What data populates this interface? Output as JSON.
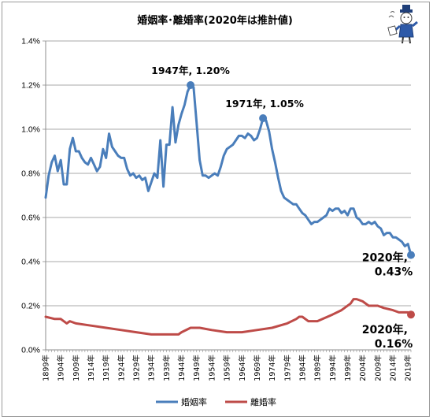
{
  "chart_data": {
    "type": "line",
    "title": "婚姻率･離婚率(2020年は推計値)",
    "ylim": [
      0,
      1.4
    ],
    "y_ticks": [
      "0.0%",
      "0.2%",
      "0.4%",
      "0.6%",
      "0.8%",
      "1.0%",
      "1.2%",
      "1.4%"
    ],
    "x_tick_labels": [
      "1899年",
      "1904年",
      "1909年",
      "1914年",
      "1919年",
      "1924年",
      "1929年",
      "1934年",
      "1939年",
      "1944年",
      "1949年",
      "1954年",
      "1959年",
      "1964年",
      "1969年",
      "1974年",
      "1979年",
      "1984年",
      "1989年",
      "1994年",
      "1999年",
      "2004年",
      "2009年",
      "2014年",
      "2019年"
    ],
    "xlim": [
      1899,
      2020
    ],
    "grid": "horizontal",
    "legend": "bottom",
    "series": [
      {
        "name": "婚姻率",
        "color": "#4a7ebb",
        "points": [
          [
            1899,
            0.69
          ],
          [
            1900,
            0.79
          ],
          [
            1901,
            0.85
          ],
          [
            1902,
            0.88
          ],
          [
            1903,
            0.81
          ],
          [
            1904,
            0.86
          ],
          [
            1905,
            0.75
          ],
          [
            1906,
            0.75
          ],
          [
            1907,
            0.91
          ],
          [
            1908,
            0.96
          ],
          [
            1909,
            0.9
          ],
          [
            1910,
            0.9
          ],
          [
            1911,
            0.87
          ],
          [
            1912,
            0.85
          ],
          [
            1913,
            0.84
          ],
          [
            1914,
            0.87
          ],
          [
            1915,
            0.84
          ],
          [
            1916,
            0.81
          ],
          [
            1917,
            0.83
          ],
          [
            1918,
            0.91
          ],
          [
            1919,
            0.87
          ],
          [
            1920,
            0.98
          ],
          [
            1921,
            0.92
          ],
          [
            1922,
            0.9
          ],
          [
            1923,
            0.88
          ],
          [
            1924,
            0.87
          ],
          [
            1925,
            0.87
          ],
          [
            1926,
            0.82
          ],
          [
            1927,
            0.79
          ],
          [
            1928,
            0.8
          ],
          [
            1929,
            0.78
          ],
          [
            1930,
            0.79
          ],
          [
            1931,
            0.77
          ],
          [
            1932,
            0.78
          ],
          [
            1933,
            0.72
          ],
          [
            1934,
            0.76
          ],
          [
            1935,
            0.8
          ],
          [
            1936,
            0.78
          ],
          [
            1937,
            0.95
          ],
          [
            1938,
            0.74
          ],
          [
            1939,
            0.93
          ],
          [
            1940,
            0.93
          ],
          [
            1941,
            1.1
          ],
          [
            1942,
            0.94
          ],
          [
            1943,
            1.02
          ],
          [
            1944,
            1.07
          ],
          [
            1945,
            1.11
          ],
          [
            1946,
            1.17
          ],
          [
            1947,
            1.2
          ],
          [
            1948,
            1.19
          ],
          [
            1949,
            1.03
          ],
          [
            1950,
            0.86
          ],
          [
            1951,
            0.79
          ],
          [
            1952,
            0.79
          ],
          [
            1953,
            0.78
          ],
          [
            1954,
            0.79
          ],
          [
            1955,
            0.8
          ],
          [
            1956,
            0.79
          ],
          [
            1957,
            0.83
          ],
          [
            1958,
            0.88
          ],
          [
            1959,
            0.91
          ],
          [
            1960,
            0.92
          ],
          [
            1961,
            0.93
          ],
          [
            1962,
            0.95
          ],
          [
            1963,
            0.97
          ],
          [
            1964,
            0.97
          ],
          [
            1965,
            0.96
          ],
          [
            1966,
            0.98
          ],
          [
            1967,
            0.97
          ],
          [
            1968,
            0.95
          ],
          [
            1969,
            0.96
          ],
          [
            1970,
            1.0
          ],
          [
            1971,
            1.05
          ],
          [
            1972,
            1.04
          ],
          [
            1973,
            0.99
          ],
          [
            1974,
            0.91
          ],
          [
            1975,
            0.85
          ],
          [
            1976,
            0.78
          ],
          [
            1977,
            0.72
          ],
          [
            1978,
            0.69
          ],
          [
            1979,
            0.68
          ],
          [
            1980,
            0.67
          ],
          [
            1981,
            0.66
          ],
          [
            1982,
            0.66
          ],
          [
            1983,
            0.64
          ],
          [
            1984,
            0.62
          ],
          [
            1985,
            0.61
          ],
          [
            1986,
            0.59
          ],
          [
            1987,
            0.57
          ],
          [
            1988,
            0.58
          ],
          [
            1989,
            0.58
          ],
          [
            1990,
            0.59
          ],
          [
            1991,
            0.6
          ],
          [
            1992,
            0.61
          ],
          [
            1993,
            0.64
          ],
          [
            1994,
            0.63
          ],
          [
            1995,
            0.64
          ],
          [
            1996,
            0.64
          ],
          [
            1997,
            0.62
          ],
          [
            1998,
            0.63
          ],
          [
            1999,
            0.61
          ],
          [
            2000,
            0.64
          ],
          [
            2001,
            0.64
          ],
          [
            2002,
            0.6
          ],
          [
            2003,
            0.59
          ],
          [
            2004,
            0.57
          ],
          [
            2005,
            0.57
          ],
          [
            2006,
            0.58
          ],
          [
            2007,
            0.57
          ],
          [
            2008,
            0.58
          ],
          [
            2009,
            0.56
          ],
          [
            2010,
            0.55
          ],
          [
            2011,
            0.52
          ],
          [
            2012,
            0.53
          ],
          [
            2013,
            0.53
          ],
          [
            2014,
            0.51
          ],
          [
            2015,
            0.51
          ],
          [
            2016,
            0.5
          ],
          [
            2017,
            0.49
          ],
          [
            2018,
            0.47
          ],
          [
            2019,
            0.48
          ],
          [
            2020,
            0.43
          ]
        ]
      },
      {
        "name": "離婚率",
        "color": "#be4b48",
        "points": [
          [
            1899,
            0.15
          ],
          [
            1902,
            0.14
          ],
          [
            1904,
            0.14
          ],
          [
            1906,
            0.12
          ],
          [
            1907,
            0.13
          ],
          [
            1909,
            0.12
          ],
          [
            1914,
            0.11
          ],
          [
            1919,
            0.1
          ],
          [
            1924,
            0.09
          ],
          [
            1929,
            0.08
          ],
          [
            1934,
            0.07
          ],
          [
            1939,
            0.07
          ],
          [
            1941,
            0.07
          ],
          [
            1942,
            0.07
          ],
          [
            1943,
            0.07
          ],
          [
            1944,
            0.08
          ],
          [
            1947,
            0.1
          ],
          [
            1950,
            0.1
          ],
          [
            1954,
            0.09
          ],
          [
            1959,
            0.08
          ],
          [
            1964,
            0.08
          ],
          [
            1969,
            0.09
          ],
          [
            1974,
            0.1
          ],
          [
            1979,
            0.12
          ],
          [
            1982,
            0.14
          ],
          [
            1983,
            0.15
          ],
          [
            1984,
            0.15
          ],
          [
            1986,
            0.13
          ],
          [
            1989,
            0.13
          ],
          [
            1994,
            0.16
          ],
          [
            1997,
            0.18
          ],
          [
            2000,
            0.21
          ],
          [
            2001,
            0.23
          ],
          [
            2002,
            0.23
          ],
          [
            2004,
            0.22
          ],
          [
            2006,
            0.2
          ],
          [
            2009,
            0.2
          ],
          [
            2011,
            0.19
          ],
          [
            2014,
            0.18
          ],
          [
            2016,
            0.17
          ],
          [
            2019,
            0.17
          ],
          [
            2020,
            0.16
          ]
        ]
      }
    ],
    "annotations": [
      {
        "text": "1947年, 1.20%",
        "x": 1947,
        "y": 1.2
      },
      {
        "text": "1971年, 1.05%",
        "x": 1971,
        "y": 1.05
      },
      {
        "text": "2020年,",
        "text2": "0.43%",
        "x": 2020,
        "y": 0.43
      },
      {
        "text": "2020年,",
        "text2": "0.16%",
        "x": 2020,
        "y": 0.16
      }
    ]
  }
}
